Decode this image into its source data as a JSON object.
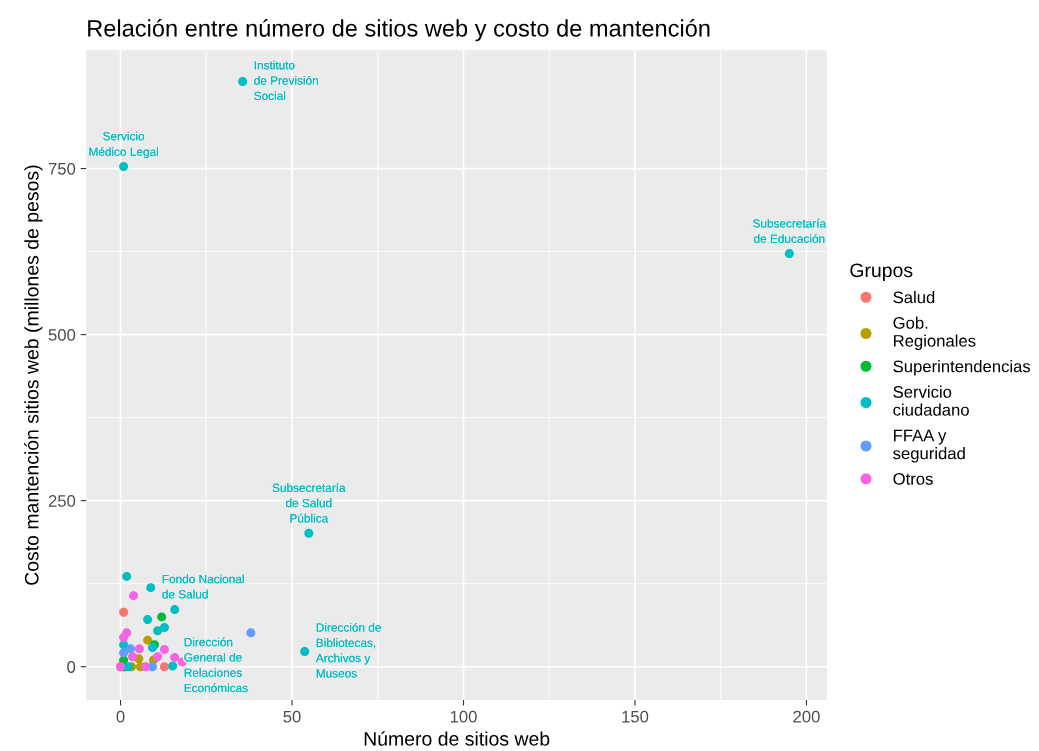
{
  "chart_data": {
    "type": "scatter",
    "title": "Relación entre número de sitios web y costo de mantención",
    "xlabel": "Número de sitios web",
    "ylabel": "Costo mantención sitios web (millones de pesos)",
    "legend_title": "Grupos",
    "legend": "right",
    "grid": true,
    "marker": "circle",
    "xlim": [
      -10,
      206
    ],
    "ylim": [
      -50,
      928
    ],
    "xticks": [
      0,
      50,
      100,
      150,
      200
    ],
    "yticks": [
      0,
      250,
      500,
      750
    ],
    "series": [
      {
        "name": "Salud",
        "color": "#f8766d",
        "x": [
          0.9,
          0,
          12.8
        ],
        "values": [
          82,
          0,
          0
        ]
      },
      {
        "name": "Gob.\nRegionales",
        "color": "#b79f00",
        "x": [
          7.9,
          5.3,
          1.5,
          3.2,
          5.8,
          9.6
        ],
        "values": [
          40,
          12,
          0,
          0,
          0,
          10
        ]
      },
      {
        "name": "Superintendencias",
        "color": "#00ba38",
        "x": [
          12,
          9.9,
          0.9,
          0.9
        ],
        "values": [
          75,
          33,
          10,
          0
        ]
      },
      {
        "name": "Servicio\nciudadano",
        "color": "#00bfc4",
        "x": [
          35.6,
          0.9,
          195,
          54.9,
          53.7,
          1.8,
          8.8,
          15.8,
          7.9,
          10.8,
          12.8,
          0.9,
          9.3,
          15.2,
          2.3
        ],
        "values": [
          881,
          753,
          622,
          201,
          23,
          136,
          119,
          86,
          71,
          54,
          59,
          33,
          29,
          1,
          0
        ]
      },
      {
        "name": "FFAA y\nseguridad",
        "color": "#619cff",
        "x": [
          38,
          2.9,
          0.9,
          9.3
        ],
        "values": [
          51,
          27,
          21,
          0
        ]
      },
      {
        "name": "Otros",
        "color": "#f564e3",
        "x": [
          3.8,
          1.8,
          0.9,
          5.5,
          12.8,
          10.8,
          15.8,
          18,
          0,
          3.5,
          7.3
        ],
        "values": [
          107,
          51,
          44,
          27,
          26,
          15,
          14,
          7,
          0,
          15,
          0
        ]
      }
    ],
    "annotations": [
      {
        "text": "Instituto\nde Previsión\nSocial",
        "x": 35.6,
        "y": 881
      },
      {
        "text": "Servicio\nMédico Legal",
        "x": 0.9,
        "y": 753
      },
      {
        "text": "Subsecretaría\nde Educación",
        "x": 195,
        "y": 622
      },
      {
        "text": "Subsecretaría\nde Salud\nPública",
        "x": 54.9,
        "y": 201
      },
      {
        "text": "Dirección de\nBibliotecas,\nArchivos y\nMuseos",
        "x": 53.7,
        "y": 23
      },
      {
        "text": "Fondo Nacional\nde Salud",
        "x": 8.8,
        "y": 119
      },
      {
        "text": "Dirección\nGeneral de\nRelaciones\nEconómicas",
        "x": 15.2,
        "y": 1
      }
    ]
  }
}
